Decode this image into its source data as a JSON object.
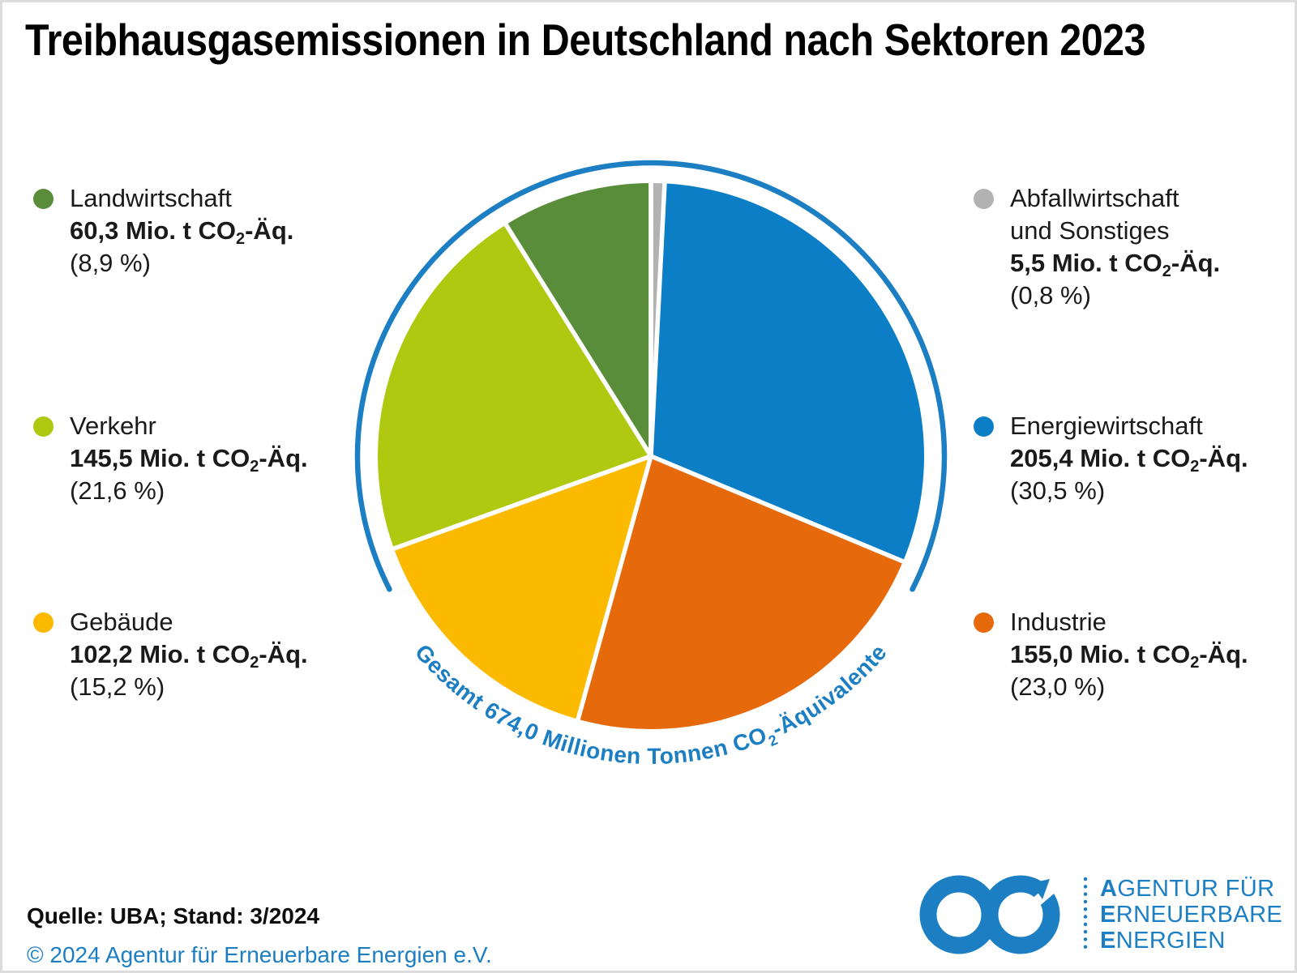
{
  "title": "Treibhausgasemissionen in Deutschland nach Sektoren 2023",
  "chart_data": {
    "type": "pie",
    "title": "Treibhausgasemissionen in Deutschland nach Sektoren 2023",
    "unit": "Mio. t CO2-Äquivalente",
    "total_mio_t": 674.0,
    "total_label_pre": "Gesamt 674,0 Millionen Tonnen CO",
    "total_label_sub": "2",
    "total_label_post": "-Äquivalente",
    "start_angle_deg_from_top": 0,
    "direction": "clockwise",
    "outer_ring_color": "#1c7ec3",
    "slices": [
      {
        "name": "Abfallwirtschaft und Sonstiges",
        "value": 5.5,
        "percent": 0.8,
        "color": "#b2b2b2"
      },
      {
        "name": "Energiewirtschaft",
        "value": 205.4,
        "percent": 30.5,
        "color": "#0c7ec5"
      },
      {
        "name": "Industrie",
        "value": 155.0,
        "percent": 23.0,
        "color": "#e6690b"
      },
      {
        "name": "Gebäude",
        "value": 102.2,
        "percent": 15.2,
        "color": "#fbb900"
      },
      {
        "name": "Verkehr",
        "value": 145.5,
        "percent": 21.6,
        "color": "#aec90f"
      },
      {
        "name": "Landwirtschaft",
        "value": 60.3,
        "percent": 8.9,
        "color": "#5a8d3a"
      }
    ]
  },
  "legend_left": [
    {
      "label": "Landwirtschaft",
      "value_pre": "60,3 Mio. t CO",
      "value_sub": "2",
      "value_post": "-Äq.",
      "percent": "(8,9 %)",
      "color": "#5a8d3a"
    },
    {
      "label": "Verkehr",
      "value_pre": "145,5 Mio. t CO",
      "value_sub": "2",
      "value_post": "-Äq.",
      "percent": "(21,6 %)",
      "color": "#aec90f"
    },
    {
      "label": "Gebäude",
      "value_pre": "102,2 Mio. t CO",
      "value_sub": "2",
      "value_post": "-Äq.",
      "percent": "(15,2 %)",
      "color": "#fbb900"
    }
  ],
  "legend_right": [
    {
      "label": "Abfallwirtschaft",
      "label2": "und Sonstiges",
      "value_pre": "5,5 Mio. t CO",
      "value_sub": "2",
      "value_post": "-Äq.",
      "percent": "(0,8 %)",
      "color": "#b2b2b2"
    },
    {
      "label": "Energiewirtschaft",
      "value_pre": "205,4 Mio. t CO",
      "value_sub": "2",
      "value_post": "-Äq.",
      "percent": "(30,5 %)",
      "color": "#0c7ec5"
    },
    {
      "label": "Industrie",
      "value_pre": "155,0 Mio. t CO",
      "value_sub": "2",
      "value_post": "-Äq.",
      "percent": "(23,0 %)",
      "color": "#e6690b"
    }
  ],
  "footer": {
    "source": "Quelle: UBA; Stand: 3/2024",
    "copyright": "© 2024 Agentur für Erneuerbare Energien e.V."
  },
  "logo": {
    "icon": "infinity-arrow-icon",
    "color": "#1c7ec3",
    "lines": [
      {
        "lead": "A",
        "rest": "GENTUR FÜR"
      },
      {
        "lead": "E",
        "rest": "RNEUERBARE"
      },
      {
        "lead": "E",
        "rest": "NERGIEN"
      }
    ]
  },
  "colors": {
    "accent_blue": "#1c7ec3",
    "text": "#1a1a1a",
    "border": "#dcdcdc"
  }
}
